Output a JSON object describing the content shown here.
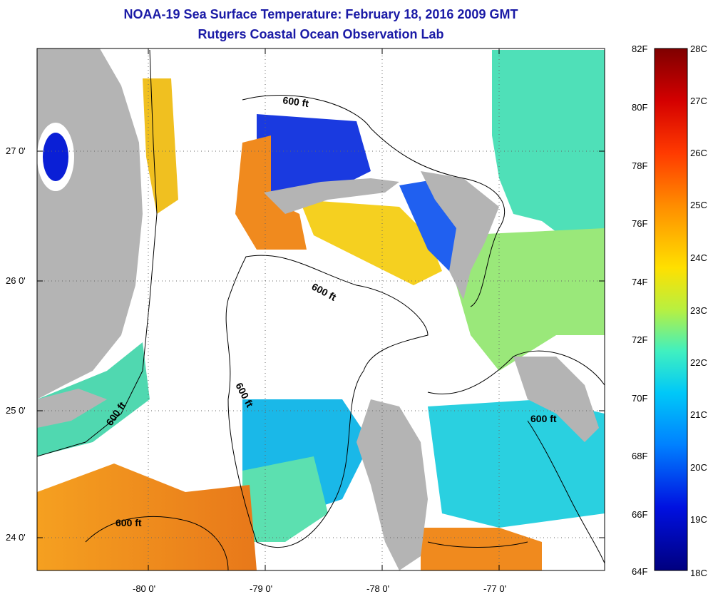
{
  "title": {
    "line1": "NOAA-19 Sea Surface Temperature:  February 18, 2016 2009 GMT",
    "line2": "Rutgers Coastal Ocean Observation Lab"
  },
  "axes": {
    "lat_labels": [
      "27 0'",
      "26 0'",
      "25 0'",
      "24 0'"
    ],
    "lon_labels": [
      "-80 0'",
      "-79 0'",
      "-78 0'",
      "-77 0'"
    ]
  },
  "contour_labels": [
    "600 ft",
    "600 ft",
    "600 ft",
    "600 ft",
    "600 ft",
    "600 ft"
  ],
  "colorbar": {
    "fahrenheit": [
      "82F",
      "80F",
      "78F",
      "76F",
      "74F",
      "72F",
      "70F",
      "68F",
      "66F",
      "64F"
    ],
    "celsius": [
      "28C",
      "27C",
      "26C",
      "25C",
      "24C",
      "23C",
      "22C",
      "21C",
      "20C",
      "19C",
      "18C"
    ]
  },
  "colors": {
    "land": "#b4b4b4",
    "title": "#1a1aa6",
    "warm": "#f08a1e",
    "cold": "#0a1fd6"
  }
}
